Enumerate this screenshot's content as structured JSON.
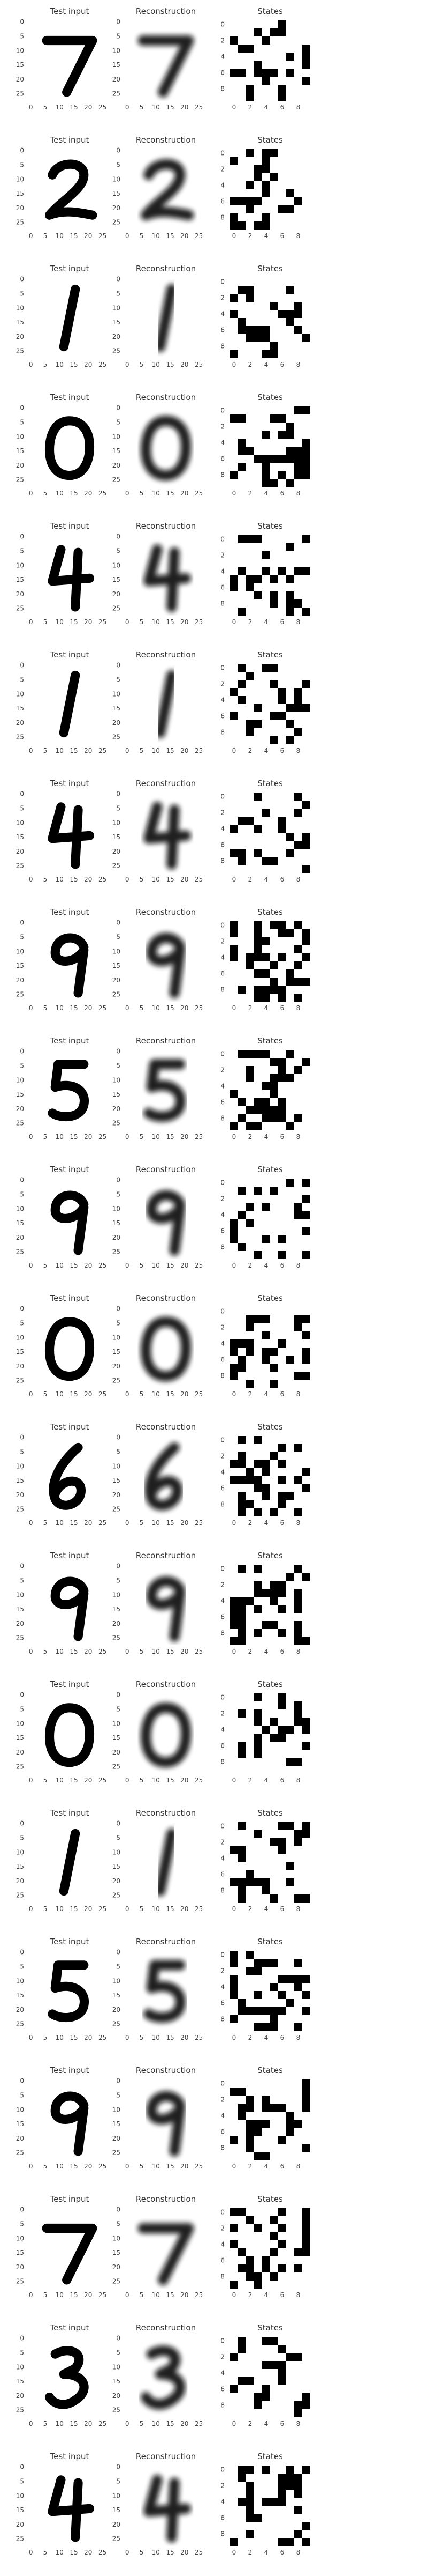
{
  "panels": {
    "titles": [
      "Test input",
      "Reconstruction",
      "States"
    ]
  },
  "image_axis": {
    "xticks": [
      0,
      5,
      10,
      15,
      20,
      25
    ],
    "yticks": [
      0,
      5,
      10,
      15,
      20,
      25
    ]
  },
  "states_axis": {
    "xticks": [
      0,
      2,
      4,
      6,
      8
    ],
    "yticks": [
      0,
      2,
      4,
      6,
      8
    ]
  }
}
